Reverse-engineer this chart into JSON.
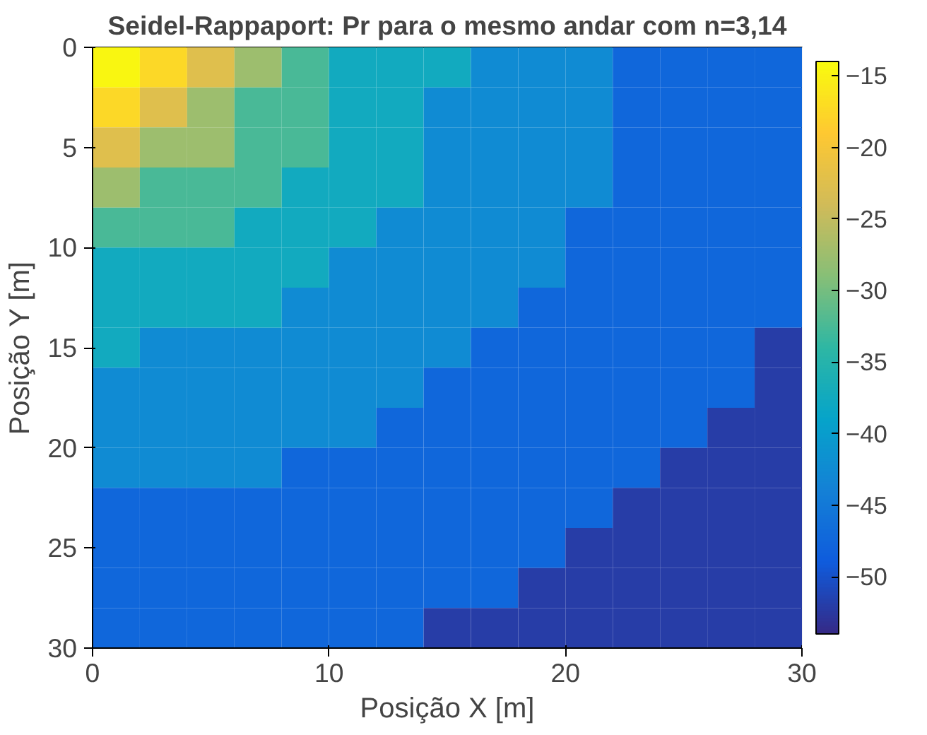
{
  "chart_data": {
    "type": "heatmap",
    "title": "Seidel-Rappaport: Pr para o mesmo andar com n=3,14",
    "xlabel": "Posição X [m]",
    "ylabel": "Posição Y [m]",
    "x": [
      1,
      3,
      5,
      7,
      9,
      11,
      13,
      15,
      17,
      19,
      21,
      23,
      25,
      27,
      29
    ],
    "y": [
      1,
      3,
      5,
      7,
      9,
      11,
      13,
      15,
      17,
      19,
      21,
      23,
      25,
      27,
      29
    ],
    "xlim": [
      0,
      30
    ],
    "ylim": [
      30,
      0
    ],
    "xticks": [
      0,
      10,
      20,
      30
    ],
    "yticks": [
      0,
      5,
      10,
      15,
      20,
      25,
      30
    ],
    "clim": [
      -54,
      -14
    ],
    "cticks": [
      -50,
      -45,
      -40,
      -35,
      -30,
      -25,
      -20,
      -15
    ],
    "cells": [
      [
        -14.5,
        -17.5,
        -22.5,
        -27.5,
        -32.5,
        -37.5,
        -37.5,
        -37.5,
        -42.5,
        -42.5,
        -42.5,
        -47.5,
        -47.5,
        -47.5,
        -47.5
      ],
      [
        -17.5,
        -22.5,
        -27.5,
        -32.5,
        -32.5,
        -37.5,
        -37.5,
        -42.5,
        -42.5,
        -42.5,
        -42.5,
        -47.5,
        -47.5,
        -47.5,
        -47.5
      ],
      [
        -22.5,
        -27.5,
        -27.5,
        -32.5,
        -32.5,
        -37.5,
        -37.5,
        -42.5,
        -42.5,
        -42.5,
        -42.5,
        -47.5,
        -47.5,
        -47.5,
        -47.5
      ],
      [
        -27.5,
        -32.5,
        -32.5,
        -32.5,
        -37.5,
        -37.5,
        -37.5,
        -42.5,
        -42.5,
        -42.5,
        -42.5,
        -47.5,
        -47.5,
        -47.5,
        -47.5
      ],
      [
        -32.5,
        -32.5,
        -32.5,
        -37.5,
        -37.5,
        -37.5,
        -42.5,
        -42.5,
        -42.5,
        -42.5,
        -47.5,
        -47.5,
        -47.5,
        -47.5,
        -47.5
      ],
      [
        -37.5,
        -37.5,
        -37.5,
        -37.5,
        -37.5,
        -42.5,
        -42.5,
        -42.5,
        -42.5,
        -42.5,
        -47.5,
        -47.5,
        -47.5,
        -47.5,
        -47.5
      ],
      [
        -37.5,
        -37.5,
        -37.5,
        -37.5,
        -42.5,
        -42.5,
        -42.5,
        -42.5,
        -42.5,
        -47.5,
        -47.5,
        -47.5,
        -47.5,
        -47.5,
        -47.5
      ],
      [
        -37.5,
        -42.5,
        -42.5,
        -42.5,
        -42.5,
        -42.5,
        -42.5,
        -42.5,
        -47.5,
        -47.5,
        -47.5,
        -47.5,
        -47.5,
        -47.5,
        -52
      ],
      [
        -42.5,
        -42.5,
        -42.5,
        -42.5,
        -42.5,
        -42.5,
        -42.5,
        -47.5,
        -47.5,
        -47.5,
        -47.5,
        -47.5,
        -47.5,
        -47.5,
        -52
      ],
      [
        -42.5,
        -42.5,
        -42.5,
        -42.5,
        -42.5,
        -42.5,
        -47.5,
        -47.5,
        -47.5,
        -47.5,
        -47.5,
        -47.5,
        -47.5,
        -52,
        -52
      ],
      [
        -42.5,
        -42.5,
        -42.5,
        -42.5,
        -47.5,
        -47.5,
        -47.5,
        -47.5,
        -47.5,
        -47.5,
        -47.5,
        -47.5,
        -52,
        -52,
        -52
      ],
      [
        -47.5,
        -47.5,
        -47.5,
        -47.5,
        -47.5,
        -47.5,
        -47.5,
        -47.5,
        -47.5,
        -47.5,
        -47.5,
        -52,
        -52,
        -52,
        -52
      ],
      [
        -47.5,
        -47.5,
        -47.5,
        -47.5,
        -47.5,
        -47.5,
        -47.5,
        -47.5,
        -47.5,
        -47.5,
        -52,
        -52,
        -52,
        -52,
        -52
      ],
      [
        -47.5,
        -47.5,
        -47.5,
        -47.5,
        -47.5,
        -47.5,
        -47.5,
        -47.5,
        -47.5,
        -52,
        -52,
        -52,
        -52,
        -52,
        -52
      ],
      [
        -47.5,
        -47.5,
        -47.5,
        -47.5,
        -47.5,
        -47.5,
        -47.5,
        -52,
        -52,
        -52,
        -52,
        -52,
        -52,
        -52,
        -52
      ]
    ]
  }
}
